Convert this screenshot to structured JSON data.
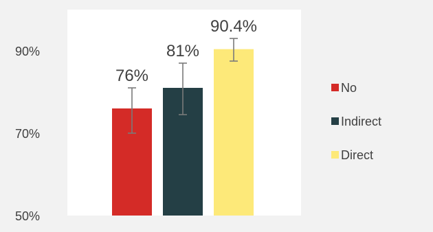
{
  "chart_data": {
    "type": "bar",
    "categories": [
      "No",
      "Indirect",
      "Direct"
    ],
    "values": [
      76,
      81,
      90.4
    ],
    "error_bars": [
      {
        "low": 70,
        "high": 81
      },
      {
        "low": 74.5,
        "high": 87
      },
      {
        "low": 87.5,
        "high": 93
      }
    ],
    "data_labels": [
      "76%",
      "81%",
      "90.4%"
    ],
    "colors": [
      "#D42B27",
      "#243F45",
      "#FDE979"
    ],
    "error_bar_color": "#7A7A7A",
    "outer_background": "#F2F2F2",
    "plot_background": "#FFFFFF",
    "ylim": [
      50,
      100
    ],
    "yticks": [
      {
        "value": 50,
        "label": "50%"
      },
      {
        "value": 70,
        "label": "70%"
      },
      {
        "value": 90,
        "label": "90%"
      }
    ],
    "legend": {
      "placement": "right",
      "entries": [
        {
          "label": "No",
          "color": "#D42B27"
        },
        {
          "label": "Indirect",
          "color": "#243F45"
        },
        {
          "label": "Direct",
          "color": "#FDE979"
        }
      ]
    },
    "title": "",
    "xlabel": "",
    "ylabel": ""
  }
}
